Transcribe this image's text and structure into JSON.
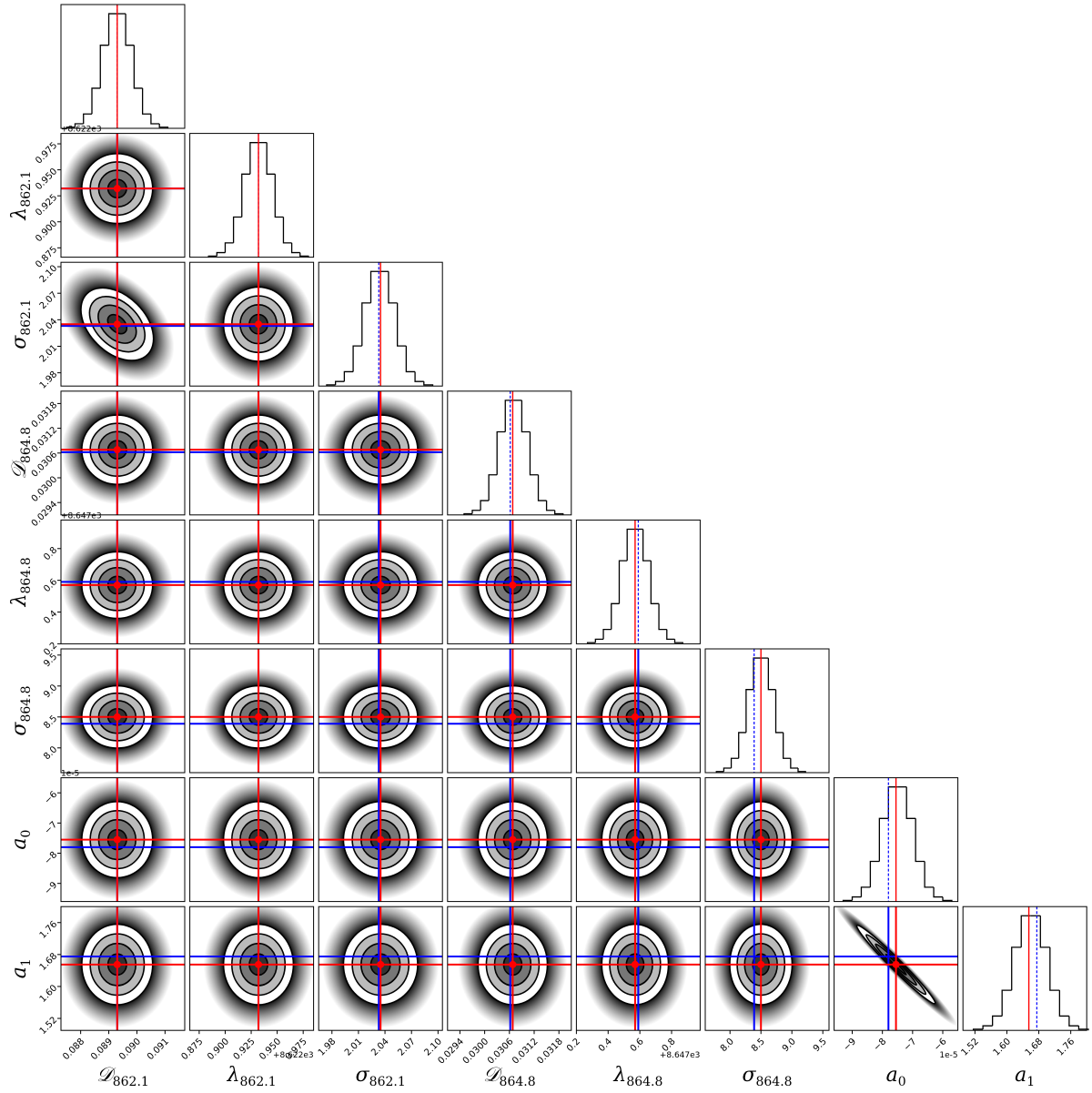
{
  "chart_data": {
    "type": "corner",
    "colors": {
      "truth": "#ff0000",
      "fit": "#0000ff"
    },
    "params": [
      {
        "symbol": "𝒟",
        "sub": "862.1",
        "lim": [
          0.0873,
          0.0917
        ],
        "ticks": [
          0.088,
          0.089,
          {
            "value": 0.09,
            "label": "0.090"
          },
          0.091
        ],
        "truth": 0.0893,
        "fit": 0.0893,
        "bins": [
          0.0875,
          0.0878,
          0.0881,
          0.0884,
          0.0887,
          0.089,
          0.0893,
          0.0896,
          0.0899,
          0.0902,
          0.0905,
          0.0908,
          0.0911
        ],
        "counts": [
          2,
          8,
          25,
          70,
          145,
          200,
          200,
          145,
          70,
          25,
          8,
          2
        ]
      },
      {
        "symbol": "λ",
        "sub": "862.1",
        "offset": "+8.622e3",
        "lim": [
          0.866,
          0.985
        ],
        "ticks": [
          0.875,
          {
            "value": 0.9,
            "label": "0.900"
          },
          0.925,
          {
            "value": 0.95,
            "label": "0.950"
          },
          0.975
        ],
        "truth": 0.932,
        "fit": 0.932,
        "bins": [
          0.884,
          0.892,
          0.9,
          0.908,
          0.916,
          0.924,
          0.932,
          0.94,
          0.948,
          0.956,
          0.964,
          0.972,
          0.98
        ],
        "counts": [
          2,
          8,
          25,
          70,
          145,
          200,
          200,
          145,
          70,
          25,
          8,
          2
        ]
      },
      {
        "symbol": "σ",
        "sub": "862.1",
        "lim": [
          1.965,
          2.105
        ],
        "ticks": [
          1.98,
          2.01,
          2.04,
          2.07,
          {
            "value": 2.1,
            "label": "2.10"
          }
        ],
        "truth": 2.035,
        "fit": 2.033,
        "bins": [
          1.974,
          1.984,
          1.994,
          2.004,
          2.014,
          2.024,
          2.034,
          2.044,
          2.054,
          2.064,
          2.074,
          2.084,
          2.094
        ],
        "counts": [
          2,
          8,
          25,
          70,
          145,
          200,
          200,
          145,
          70,
          25,
          8,
          2
        ]
      },
      {
        "symbol": "𝒟",
        "sub": "864.8",
        "lim": [
          0.0291,
          0.0321
        ],
        "ticks": [
          0.0294,
          {
            "value": 0.03,
            "label": "0.0300"
          },
          0.0306,
          0.0312,
          0.0318
        ],
        "truth": 0.03068,
        "fit": 0.03062,
        "bins": [
          0.0295,
          0.0297,
          0.0299,
          0.0301,
          0.0303,
          0.0305,
          0.0307,
          0.0309,
          0.0311,
          0.0313,
          0.0315,
          0.0317,
          0.0319
        ],
        "counts": [
          2,
          8,
          25,
          70,
          145,
          200,
          200,
          145,
          70,
          25,
          8,
          2
        ]
      },
      {
        "symbol": "λ",
        "sub": "864.8",
        "offset": "+8.647e3",
        "lim": [
          0.2,
          0.98
        ],
        "ticks": [
          0.2,
          0.4,
          0.6,
          0.8
        ],
        "truth": 0.57,
        "fit": 0.59,
        "bins": [
          0.27,
          0.32,
          0.37,
          0.42,
          0.47,
          0.52,
          0.57,
          0.62,
          0.67,
          0.72,
          0.77,
          0.82,
          0.87
        ],
        "counts": [
          2,
          8,
          25,
          70,
          145,
          200,
          200,
          145,
          70,
          25,
          8,
          2
        ]
      },
      {
        "symbol": "σ",
        "sub": "864.8",
        "lim": [
          7.6,
          9.6
        ],
        "ticks": [
          {
            "value": 8,
            "label": "8.0"
          },
          8.5,
          {
            "value": 9,
            "label": "9.0"
          },
          9.5
        ],
        "truth": 8.5,
        "fit": 8.39,
        "bins": [
          7.78,
          7.9,
          8.02,
          8.14,
          8.26,
          8.38,
          8.5,
          8.62,
          8.74,
          8.86,
          8.98,
          9.1,
          9.22
        ],
        "counts": [
          2,
          8,
          25,
          70,
          145,
          200,
          200,
          145,
          70,
          25,
          8,
          2
        ]
      },
      {
        "symbol": "a",
        "sub": "0",
        "offset": "1e-5",
        "lim": [
          -9.6,
          -5.5
        ],
        "ticks": [
          {
            "value": -9,
            "label": "−9"
          },
          {
            "value": -8,
            "label": "−8"
          },
          {
            "value": -7,
            "label": "−7"
          },
          {
            "value": -6,
            "label": "−6"
          }
        ],
        "truth": -7.55,
        "fit": -7.8,
        "bins": [
          -9.3,
          -9.0,
          -8.7,
          -8.4,
          -8.1,
          -7.8,
          -7.5,
          -7.2,
          -6.9,
          -6.6,
          -6.3,
          -6.0,
          -5.7
        ],
        "counts": [
          2,
          8,
          25,
          70,
          145,
          200,
          200,
          145,
          70,
          25,
          8,
          2
        ]
      },
      {
        "symbol": "a",
        "sub": "1",
        "lim": [
          1.49,
          1.8
        ],
        "ticks": [
          1.52,
          {
            "value": 1.6,
            "label": "1.60"
          },
          1.68,
          1.76
        ],
        "truth": 1.655,
        "fit": 1.675,
        "bins": [
          1.516,
          1.54,
          1.564,
          1.588,
          1.612,
          1.636,
          1.66,
          1.684,
          1.708,
          1.732,
          1.756,
          1.78,
          1.804
        ],
        "counts": [
          2,
          8,
          25,
          70,
          145,
          200,
          200,
          145,
          70,
          25,
          8,
          2
        ]
      }
    ],
    "correlations": [
      {
        "x": 0,
        "y": 2,
        "rho": -0.4
      },
      {
        "x": 6,
        "y": 7,
        "rho": -0.98
      }
    ]
  }
}
